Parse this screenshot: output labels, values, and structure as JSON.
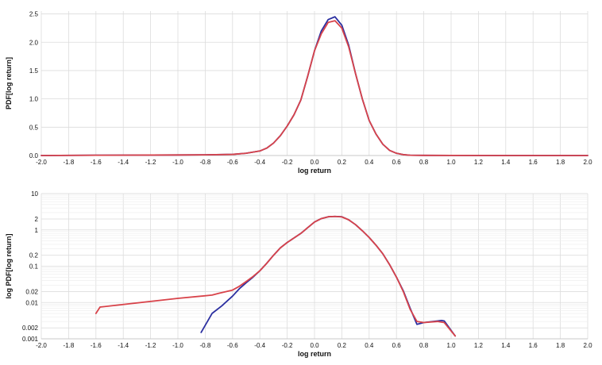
{
  "colors": {
    "series_blue": "#2b2fa0",
    "series_red": "#d8434a"
  },
  "chart_data": [
    {
      "type": "line",
      "title": "",
      "xlabel": "log return",
      "ylabel": "PDF[log return]",
      "xlim": [
        -2.0,
        2.0
      ],
      "ylim": [
        0,
        2.55
      ],
      "xticks": [
        "-2.0",
        "-1.8",
        "-1.6",
        "-1.4",
        "-1.2",
        "-1.0",
        "-0.8",
        "-0.6",
        "-0.4",
        "-0.2",
        "0.0",
        "0.2",
        "0.4",
        "0.6",
        "0.8",
        "1.0",
        "1.2",
        "1.4",
        "1.6",
        "1.8",
        "2.0"
      ],
      "yticks": [
        "0.0",
        "0.5",
        "1.0",
        "1.5",
        "2.0",
        "2.5"
      ],
      "grid": true,
      "series": [
        {
          "color": "#2b2fa0",
          "x": [
            -2.0,
            -1.6,
            -1.0,
            -0.8,
            -0.6,
            -0.5,
            -0.4,
            -0.35,
            -0.3,
            -0.25,
            -0.2,
            -0.15,
            -0.1,
            -0.05,
            0.0,
            0.05,
            0.1,
            0.15,
            0.2,
            0.25,
            0.3,
            0.35,
            0.4,
            0.45,
            0.5,
            0.55,
            0.6,
            0.65,
            0.7,
            0.8,
            1.0,
            1.5,
            2.0
          ],
          "y": [
            0,
            0.005,
            0.01,
            0.012,
            0.02,
            0.04,
            0.08,
            0.13,
            0.22,
            0.35,
            0.52,
            0.72,
            0.98,
            1.4,
            1.85,
            2.2,
            2.4,
            2.45,
            2.3,
            1.95,
            1.45,
            1.0,
            0.62,
            0.38,
            0.2,
            0.09,
            0.04,
            0.015,
            0.005,
            0.003,
            0.002,
            0,
            0
          ]
        },
        {
          "color": "#d8434a",
          "x": [
            -2.0,
            -1.6,
            -1.0,
            -0.8,
            -0.6,
            -0.5,
            -0.4,
            -0.35,
            -0.3,
            -0.25,
            -0.2,
            -0.15,
            -0.1,
            -0.05,
            0.0,
            0.05,
            0.1,
            0.15,
            0.2,
            0.25,
            0.3,
            0.35,
            0.4,
            0.45,
            0.5,
            0.55,
            0.6,
            0.65,
            0.7,
            0.8,
            1.0,
            1.5,
            2.0
          ],
          "y": [
            0,
            0.005,
            0.01,
            0.012,
            0.02,
            0.04,
            0.08,
            0.13,
            0.22,
            0.35,
            0.52,
            0.72,
            0.98,
            1.4,
            1.85,
            2.15,
            2.35,
            2.38,
            2.25,
            1.92,
            1.45,
            1.0,
            0.62,
            0.38,
            0.2,
            0.09,
            0.04,
            0.015,
            0.005,
            0.003,
            0.002,
            0,
            0
          ]
        }
      ]
    },
    {
      "type": "line",
      "title": "",
      "xlabel": "log return",
      "ylabel": "log PDF[log return]",
      "xlim": [
        -2.0,
        2.0
      ],
      "ylim": [
        0.001,
        10
      ],
      "yscale": "log",
      "xticks": [
        "-2.0",
        "-1.8",
        "-1.6",
        "-1.4",
        "-1.2",
        "-1.0",
        "-0.8",
        "-0.6",
        "-0.4",
        "-0.2",
        "0.0",
        "0.2",
        "0.4",
        "0.6",
        "0.8",
        "1.0",
        "1.2",
        "1.4",
        "1.6",
        "1.8",
        "2.0"
      ],
      "yticks": [
        {
          "label": "10",
          "value": 10
        },
        {
          "label": "2",
          "value": 2
        },
        {
          "label": "1",
          "value": 1
        },
        {
          "label": "0.2",
          "value": 0.2
        },
        {
          "label": "0.1",
          "value": 0.1
        },
        {
          "label": "0.02",
          "value": 0.02
        },
        {
          "label": "0.01",
          "value": 0.01
        },
        {
          "label": "0.002",
          "value": 0.002
        },
        {
          "label": "0.001",
          "value": 0.001
        }
      ],
      "grid": true,
      "series": [
        {
          "color": "#2b2fa0",
          "x": [
            -0.83,
            -0.75,
            -0.68,
            -0.6,
            -0.55,
            -0.5,
            -0.45,
            -0.4,
            -0.35,
            -0.3,
            -0.25,
            -0.2,
            -0.15,
            -0.1,
            -0.05,
            0.0,
            0.05,
            0.1,
            0.15,
            0.2,
            0.25,
            0.3,
            0.35,
            0.4,
            0.45,
            0.5,
            0.55,
            0.6,
            0.65,
            0.7,
            0.75,
            0.8,
            0.93,
            0.95,
            1.03
          ],
          "y": [
            0.0015,
            0.005,
            0.008,
            0.015,
            0.024,
            0.035,
            0.05,
            0.075,
            0.12,
            0.2,
            0.32,
            0.45,
            0.6,
            0.8,
            1.15,
            1.65,
            2.05,
            2.3,
            2.35,
            2.3,
            1.9,
            1.4,
            0.95,
            0.62,
            0.38,
            0.22,
            0.11,
            0.05,
            0.021,
            0.007,
            0.0025,
            0.0028,
            0.0032,
            0.0031,
            0.0012
          ]
        },
        {
          "color": "#d8434a",
          "x": [
            -1.6,
            -1.57,
            -1.0,
            -0.75,
            -0.7,
            -0.6,
            -0.55,
            -0.5,
            -0.45,
            -0.4,
            -0.35,
            -0.3,
            -0.25,
            -0.2,
            -0.15,
            -0.1,
            -0.05,
            0.0,
            0.05,
            0.1,
            0.15,
            0.2,
            0.25,
            0.3,
            0.35,
            0.4,
            0.45,
            0.5,
            0.55,
            0.6,
            0.65,
            0.7,
            0.75,
            0.8,
            0.9,
            0.95,
            1.03
          ],
          "y": [
            0.005,
            0.0075,
            0.013,
            0.016,
            0.018,
            0.022,
            0.028,
            0.038,
            0.052,
            0.075,
            0.12,
            0.2,
            0.32,
            0.45,
            0.6,
            0.8,
            1.15,
            1.65,
            2.05,
            2.3,
            2.35,
            2.28,
            1.9,
            1.4,
            0.95,
            0.62,
            0.38,
            0.22,
            0.11,
            0.05,
            0.02,
            0.0065,
            0.003,
            0.0028,
            0.003,
            0.0028,
            0.0012
          ]
        }
      ]
    }
  ]
}
